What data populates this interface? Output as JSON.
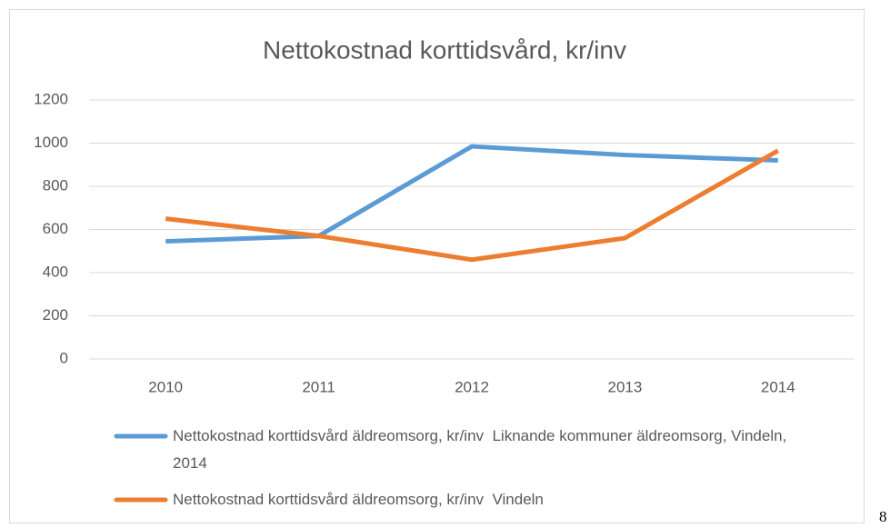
{
  "chart_data": {
    "type": "line",
    "title": "Nettokostnad korttidsvård, kr/inv",
    "categories": [
      "2010",
      "2011",
      "2012",
      "2013",
      "2014"
    ],
    "series": [
      {
        "name": "Nettokostnad korttidsvård äldreomsorg, kr/inv  Liknande kommuner äldreomsorg, Vindeln, 2014",
        "color": "#5b9bd5",
        "values": [
          545,
          570,
          985,
          945,
          920
        ]
      },
      {
        "name": "Nettokostnad korttidsvård äldreomsorg, kr/inv  Vindeln",
        "color": "#ed7d31",
        "values": [
          650,
          570,
          460,
          560,
          965
        ]
      }
    ],
    "ylim": [
      0,
      1200
    ],
    "yticks": [
      0,
      200,
      400,
      600,
      800,
      1000,
      1200
    ],
    "grid": true
  },
  "page_number": "8"
}
